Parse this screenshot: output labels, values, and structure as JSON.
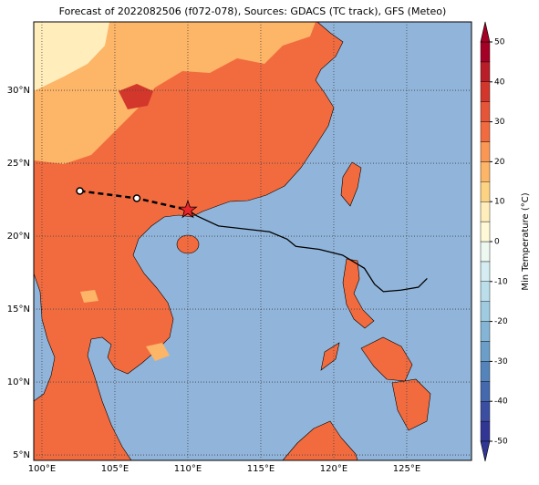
{
  "title": "Forecast of 2022082506 (f072-078), Sources: GDACS (TC track), GFS (Meteo)",
  "map": {
    "lonlim": [
      99.44,
      129.44
    ],
    "latlim": [
      4.63,
      34.69
    ],
    "lonticks": [
      {
        "value": 100,
        "label": "100°E"
      },
      {
        "value": 105,
        "label": "105°E"
      },
      {
        "value": 110,
        "label": "110°E"
      },
      {
        "value": 115,
        "label": "115°E"
      },
      {
        "value": 120,
        "label": "120°E"
      },
      {
        "value": 125,
        "label": "125°E"
      }
    ],
    "latticks": [
      {
        "value": 5,
        "label": "5°N"
      },
      {
        "value": 10,
        "label": "10°N"
      },
      {
        "value": 15,
        "label": "15°N"
      },
      {
        "value": 20,
        "label": "20°N"
      },
      {
        "value": 25,
        "label": "25°N"
      },
      {
        "value": 30,
        "label": "30°N"
      }
    ],
    "grid": true
  },
  "colorbar": {
    "label": "Min Temperature (°C)",
    "lim": [
      -50,
      50
    ],
    "ticks": [
      -50,
      -40,
      -30,
      -20,
      -10,
      0,
      10,
      20,
      30,
      40,
      50
    ],
    "levels": [
      -50,
      -45,
      -40,
      -35,
      -30,
      -25,
      -20,
      -15,
      -10,
      -5,
      0,
      5,
      10,
      15,
      20,
      25,
      30,
      35,
      40,
      45,
      50
    ],
    "colors": [
      "#313695",
      "#3b4fa2",
      "#4569ad",
      "#5584bb",
      "#6b9ec8",
      "#85b5d6",
      "#9fcbe1",
      "#bbdeeb",
      "#d5ecf3",
      "#edf8f0",
      "#fff9d8",
      "#ffeebc",
      "#fed283",
      "#fdb567",
      "#fa9755",
      "#f26b3f",
      "#e75538",
      "#d3372b",
      "#b91d27",
      "#a50026"
    ],
    "extend": "both"
  },
  "track": {
    "observed": {
      "lon": [
        102.6,
        106.5,
        110.0
      ],
      "lat": [
        23.1,
        22.6,
        21.8
      ],
      "color": "#000000"
    },
    "forecast": {
      "lon": [
        110.0,
        110.6,
        112.1,
        115.6,
        116.8,
        117.4,
        119.0,
        120.6,
        122.1,
        122.8,
        123.4,
        124.6,
        125.8,
        126.4
      ],
      "lat": [
        21.8,
        21.4,
        20.7,
        20.3,
        19.8,
        19.3,
        19.1,
        18.7,
        17.8,
        16.7,
        16.2,
        16.3,
        16.5,
        17.1
      ],
      "color": "#000000"
    }
  }
}
